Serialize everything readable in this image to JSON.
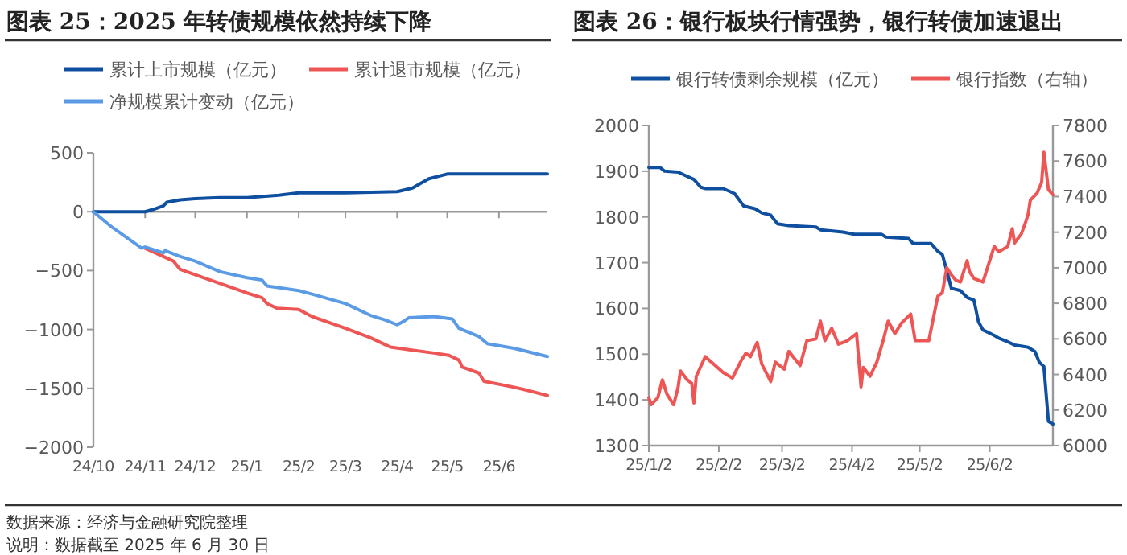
{
  "chart_data": [
    {
      "type": "line",
      "title": "图表 25：2025 年转债规模依然持续下降",
      "legend": "top",
      "xlim": [
        "2024-10-01",
        "2025-06-30"
      ],
      "xticks": [
        {
          "value": "2024-10-01",
          "label": "24/10"
        },
        {
          "value": "2024-11-01",
          "label": "24/11"
        },
        {
          "value": "2024-12-01",
          "label": "24/12"
        },
        {
          "value": "2025-01-01",
          "label": "25/1"
        },
        {
          "value": "2025-02-01",
          "label": "25/2"
        },
        {
          "value": "2025-03-01",
          "label": "25/3"
        },
        {
          "value": "2025-04-01",
          "label": "25/4"
        },
        {
          "value": "2025-05-01",
          "label": "25/5"
        },
        {
          "value": "2025-06-01",
          "label": "25/6"
        }
      ],
      "ylim": [
        -2000,
        500
      ],
      "yticks": [
        -2000,
        -1500,
        -1000,
        -500,
        0,
        500
      ],
      "series": [
        {
          "name": "累计上市规模（亿元）",
          "color": "#0f4fa0",
          "x": [
            "2024-10-01",
            "2024-11-01",
            "2024-11-06",
            "2024-11-12",
            "2024-11-14",
            "2024-11-22",
            "2024-12-01",
            "2024-12-16",
            "2025-01-01",
            "2025-01-20",
            "2025-02-01",
            "2025-03-01",
            "2025-04-01",
            "2025-04-10",
            "2025-04-15",
            "2025-04-20",
            "2025-05-01",
            "2025-06-30"
          ],
          "values": [
            0,
            0,
            20,
            50,
            80,
            100,
            110,
            120,
            120,
            140,
            160,
            160,
            170,
            200,
            240,
            280,
            320,
            320
          ]
        },
        {
          "name": "累计退市规模（亿元）",
          "color": "#ee5555",
          "x": [
            "2024-11-01",
            "2024-11-18",
            "2024-11-22",
            "2024-12-10",
            "2025-01-01",
            "2025-01-10",
            "2025-01-13",
            "2025-01-19",
            "2025-02-01",
            "2025-02-09",
            "2025-03-01",
            "2025-03-16",
            "2025-03-25",
            "2025-03-28",
            "2025-04-23",
            "2025-05-02",
            "2025-05-08",
            "2025-05-10",
            "2025-05-20",
            "2025-05-23",
            "2025-06-10",
            "2025-06-16",
            "2025-06-30"
          ],
          "values": [
            -310,
            -420,
            -490,
            -580,
            -690,
            -730,
            -780,
            -820,
            -830,
            -890,
            -990,
            -1070,
            -1130,
            -1150,
            -1200,
            -1220,
            -1260,
            -1320,
            -1370,
            -1440,
            -1490,
            -1510,
            -1560
          ]
        },
        {
          "name": "净规模累计变动（亿元）",
          "color": "#5b9be6",
          "x": [
            "2024-10-01",
            "2024-10-12",
            "2024-10-30",
            "2024-11-01",
            "2024-11-12",
            "2024-11-13",
            "2024-11-22",
            "2024-12-01",
            "2024-12-16",
            "2025-01-01",
            "2025-01-10",
            "2025-01-13",
            "2025-02-01",
            "2025-02-09",
            "2025-03-01",
            "2025-03-16",
            "2025-03-25",
            "2025-04-01",
            "2025-04-05",
            "2025-04-08",
            "2025-04-23",
            "2025-05-04",
            "2025-05-08",
            "2025-05-20",
            "2025-05-25",
            "2025-06-10",
            "2025-06-16",
            "2025-06-30"
          ],
          "values": [
            0,
            -130,
            -310,
            -300,
            -350,
            -330,
            -380,
            -420,
            -510,
            -560,
            -580,
            -630,
            -670,
            -700,
            -780,
            -880,
            -920,
            -960,
            -930,
            -900,
            -890,
            -910,
            -990,
            -1060,
            -1120,
            -1160,
            -1180,
            -1230
          ]
        }
      ],
      "annotations": [
        "数据来源：经济与金融研究院整理",
        "说明：数据截至 2025 年 6 月 30 日"
      ]
    },
    {
      "type": "line",
      "title": "图表 26：银行板块行情强势，银行转债加速退出",
      "legend": "top",
      "xlim": [
        "2025-01-02",
        "2025-06-30"
      ],
      "xticks": [
        {
          "value": "2025-01-02",
          "label": "25/1/2"
        },
        {
          "value": "2025-02-02",
          "label": "25/2/2"
        },
        {
          "value": "2025-03-02",
          "label": "25/3/2"
        },
        {
          "value": "2025-04-02",
          "label": "25/4/2"
        },
        {
          "value": "2025-05-02",
          "label": "25/5/2"
        },
        {
          "value": "2025-06-02",
          "label": "25/6/2"
        }
      ],
      "ylim": [
        1300,
        2000
      ],
      "yticks": [
        1300,
        1400,
        1500,
        1600,
        1700,
        1800,
        1900,
        2000
      ],
      "y2lim": [
        6000,
        7800
      ],
      "y2ticks": [
        6000,
        6200,
        6400,
        6600,
        6800,
        7000,
        7200,
        7400,
        7600,
        7800
      ],
      "series": [
        {
          "name": "银行转债剩余规模（亿元）",
          "color": "#0f4fa0",
          "x": [
            "2025-01-02",
            "2025-01-07",
            "2025-01-09",
            "2025-01-15",
            "2025-01-18",
            "2025-01-22",
            "2025-01-25",
            "2025-01-27",
            "2025-02-04",
            "2025-02-09",
            "2025-02-13",
            "2025-02-18",
            "2025-02-21",
            "2025-02-25",
            "2025-02-28",
            "2025-03-05",
            "2025-03-17",
            "2025-03-19",
            "2025-03-29",
            "2025-04-03",
            "2025-04-15",
            "2025-04-17",
            "2025-04-27",
            "2025-04-29",
            "2025-05-07",
            "2025-05-10",
            "2025-05-12",
            "2025-05-14",
            "2025-05-16",
            "2025-05-20",
            "2025-05-23",
            "2025-05-26",
            "2025-05-28",
            "2025-05-30",
            "2025-06-04",
            "2025-06-06",
            "2025-06-10",
            "2025-06-13",
            "2025-06-19",
            "2025-06-22",
            "2025-06-24",
            "2025-06-26",
            "2025-06-28",
            "2025-06-30"
          ],
          "values": [
            1908,
            1908,
            1900,
            1898,
            1891,
            1882,
            1865,
            1862,
            1862,
            1851,
            1824,
            1818,
            1809,
            1804,
            1785,
            1781,
            1778,
            1772,
            1767,
            1762,
            1762,
            1756,
            1753,
            1742,
            1742,
            1725,
            1718,
            1682,
            1644,
            1639,
            1624,
            1618,
            1571,
            1553,
            1541,
            1535,
            1527,
            1520,
            1515,
            1506,
            1482,
            1473,
            1353,
            1347
          ]
        },
        {
          "name": "银行指数（右轴）",
          "color": "#ee5555",
          "axis": "y2",
          "x": [
            "2025-01-02",
            "2025-01-03",
            "2025-01-06",
            "2025-01-08",
            "2025-01-10",
            "2025-01-13",
            "2025-01-15",
            "2025-01-16",
            "2025-01-19",
            "2025-01-21",
            "2025-01-22",
            "2025-01-23",
            "2025-01-27",
            "2025-02-04",
            "2025-02-08",
            "2025-02-12",
            "2025-02-14",
            "2025-02-16",
            "2025-02-19",
            "2025-02-21",
            "2025-02-25",
            "2025-02-27",
            "2025-03-03",
            "2025-03-05",
            "2025-03-10",
            "2025-03-13",
            "2025-03-17",
            "2025-03-19",
            "2025-03-21",
            "2025-03-24",
            "2025-03-27",
            "2025-03-31",
            "2025-04-04",
            "2025-04-06",
            "2025-04-07",
            "2025-04-10",
            "2025-04-13",
            "2025-04-16",
            "2025-04-18",
            "2025-04-21",
            "2025-04-24",
            "2025-04-28",
            "2025-04-30",
            "2025-05-06",
            "2025-05-10",
            "2025-05-12",
            "2025-05-14",
            "2025-05-16",
            "2025-05-18",
            "2025-05-20",
            "2025-05-23",
            "2025-05-24",
            "2025-05-26",
            "2025-05-30",
            "2025-06-04",
            "2025-06-06",
            "2025-06-10",
            "2025-06-12",
            "2025-06-13",
            "2025-06-16",
            "2025-06-18",
            "2025-06-19",
            "2025-06-20",
            "2025-06-23",
            "2025-06-25",
            "2025-06-26",
            "2025-06-28",
            "2025-06-30"
          ],
          "values": [
            6270,
            6230,
            6270,
            6370,
            6290,
            6230,
            6330,
            6420,
            6370,
            6350,
            6240,
            6390,
            6500,
            6410,
            6380,
            6480,
            6520,
            6500,
            6580,
            6460,
            6360,
            6470,
            6430,
            6530,
            6450,
            6590,
            6600,
            6700,
            6590,
            6660,
            6570,
            6590,
            6630,
            6330,
            6440,
            6390,
            6470,
            6600,
            6700,
            6630,
            6690,
            6740,
            6590,
            6590,
            6840,
            6860,
            7000,
            6960,
            6930,
            6920,
            7040,
            6980,
            6940,
            6920,
            7120,
            7090,
            7120,
            7220,
            7140,
            7190,
            7260,
            7300,
            7380,
            7420,
            7480,
            7650,
            7440,
            7410
          ]
        }
      ]
    }
  ]
}
